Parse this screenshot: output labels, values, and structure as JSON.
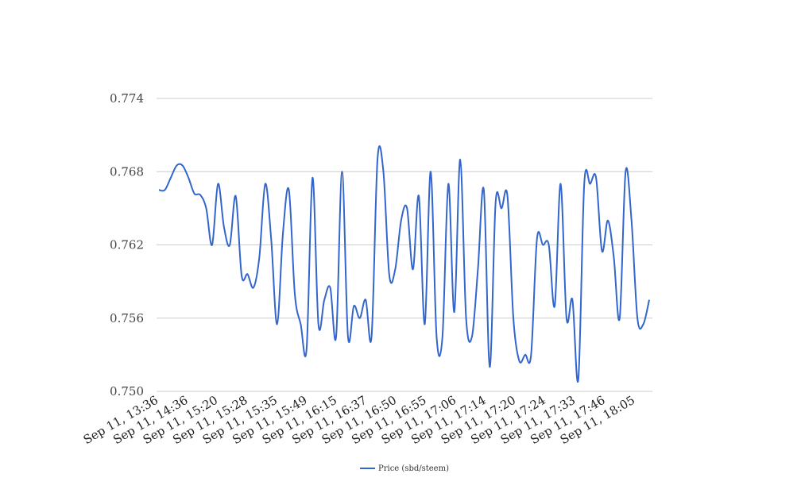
{
  "chart_data": {
    "type": "line",
    "title": "",
    "xlabel": "",
    "ylabel": "",
    "ylim": [
      0.75,
      0.774
    ],
    "y_ticks": [
      "0.750",
      "0.756",
      "0.762",
      "0.768",
      "0.774"
    ],
    "x_tick_labels": [
      "Sep 11, 13:36",
      "Sep 11, 14:36",
      "Sep 11, 15:20",
      "Sep 11, 15:28",
      "Sep 11, 15:35",
      "Sep 11, 15:49",
      "Sep 11, 16:15",
      "Sep 11, 16:37",
      "Sep 11, 16:50",
      "Sep 11, 16:55",
      "Sep 11, 17:06",
      "Sep 11, 17:14",
      "Sep 11, 17:20",
      "Sep 11, 17:24",
      "Sep 11, 17:33",
      "Sep 11, 17:46",
      "Sep 11, 18:05"
    ],
    "grid": true,
    "legend_position": "bottom",
    "series": [
      {
        "name": "Price (sbd/steem)",
        "color": "#3366cc",
        "values": [
          0.7665,
          0.7665,
          0.7675,
          0.7685,
          0.7685,
          0.7675,
          0.7662,
          0.7661,
          0.765,
          0.762,
          0.767,
          0.7635,
          0.762,
          0.766,
          0.7595,
          0.7596,
          0.7585,
          0.761,
          0.767,
          0.7625,
          0.7555,
          0.763,
          0.7665,
          0.758,
          0.7555,
          0.7535,
          0.7675,
          0.7555,
          0.7575,
          0.7585,
          0.7545,
          0.768,
          0.7545,
          0.757,
          0.756,
          0.7575,
          0.7545,
          0.769,
          0.768,
          0.7595,
          0.76,
          0.764,
          0.765,
          0.76,
          0.766,
          0.7555,
          0.768,
          0.7545,
          0.7545,
          0.767,
          0.7565,
          0.769,
          0.756,
          0.7545,
          0.76,
          0.7665,
          0.752,
          0.7655,
          0.765,
          0.766,
          0.756,
          0.7525,
          0.753,
          0.753,
          0.7625,
          0.762,
          0.762,
          0.757,
          0.767,
          0.756,
          0.7575,
          0.751,
          0.767,
          0.767,
          0.7675,
          0.7615,
          0.764,
          0.761,
          0.756,
          0.768,
          0.764,
          0.756,
          0.7555,
          0.7575
        ]
      }
    ]
  }
}
